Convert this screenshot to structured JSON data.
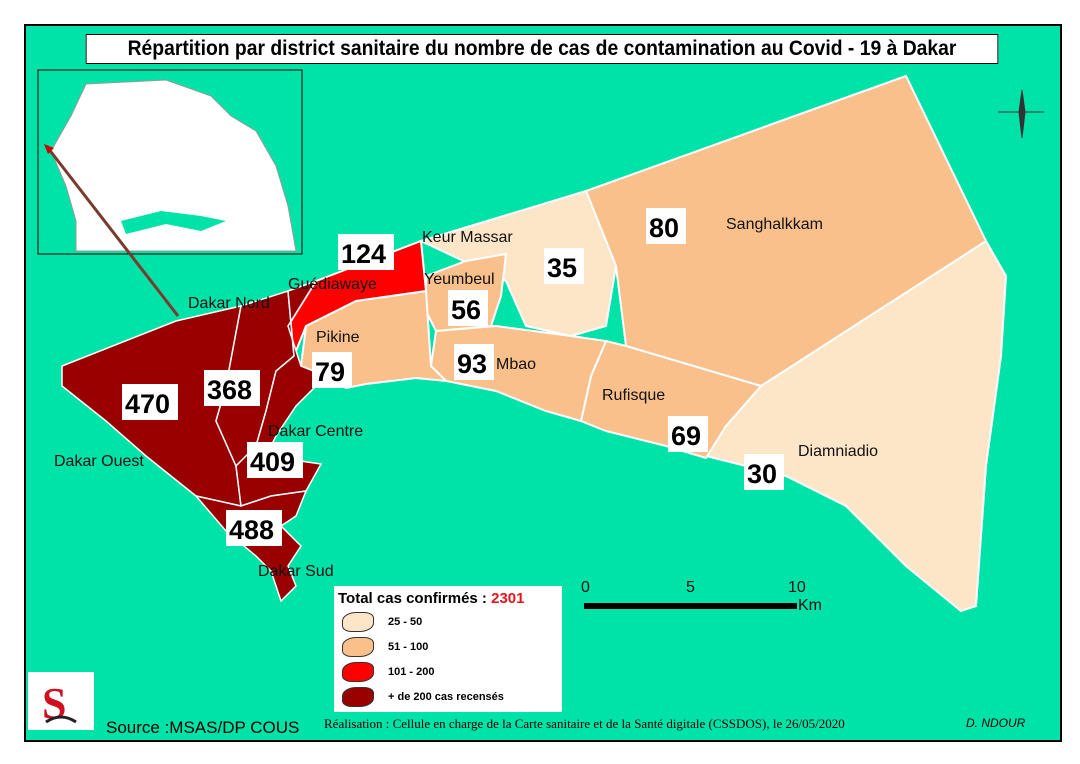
{
  "title": "Répartition par district sanitaire du nombre de cas de contamination au Covid - 19 à Dakar",
  "colors": {
    "sea": "#00E3A8",
    "cat_25_50": "#FDE5C8",
    "cat_51_100": "#F9C08C",
    "cat_101_200": "#FF0000",
    "cat_200_plus": "#990000"
  },
  "districts": [
    {
      "name": "Dakar Ouest",
      "cases": "470"
    },
    {
      "name": "Dakar Nord",
      "cases": "368"
    },
    {
      "name": "Dakar Centre",
      "cases": "409"
    },
    {
      "name": "Dakar Sud",
      "cases": "488"
    },
    {
      "name": "Guédiawaye",
      "cases": "124"
    },
    {
      "name": "Pikine",
      "cases": "79"
    },
    {
      "name": "Yeumbeul",
      "cases": "56"
    },
    {
      "name": "Keur Massar",
      "cases": "35"
    },
    {
      "name": "Mbao",
      "cases": "93"
    },
    {
      "name": "Rufisque",
      "cases": "69"
    },
    {
      "name": "Sanghalkkam",
      "cases": "80"
    },
    {
      "name": "Diamniadio",
      "cases": "30"
    }
  ],
  "legend": {
    "total_label": "Total cas confirmés :",
    "total_value": "2301",
    "items": [
      "25 - 50",
      "51 - 100",
      "101 - 200",
      "+ de 200 cas recensés"
    ]
  },
  "scale": {
    "ticks": [
      "0",
      "5",
      "10"
    ],
    "unit": "Km"
  },
  "source": "Source :MSAS/DP COUS",
  "credit": "Réalisation : Cellule en charge  de la Carte sanitaire et de la Santé digitale  (CSSDOS), le 26/05/2020",
  "author": "D. NDOUR"
}
